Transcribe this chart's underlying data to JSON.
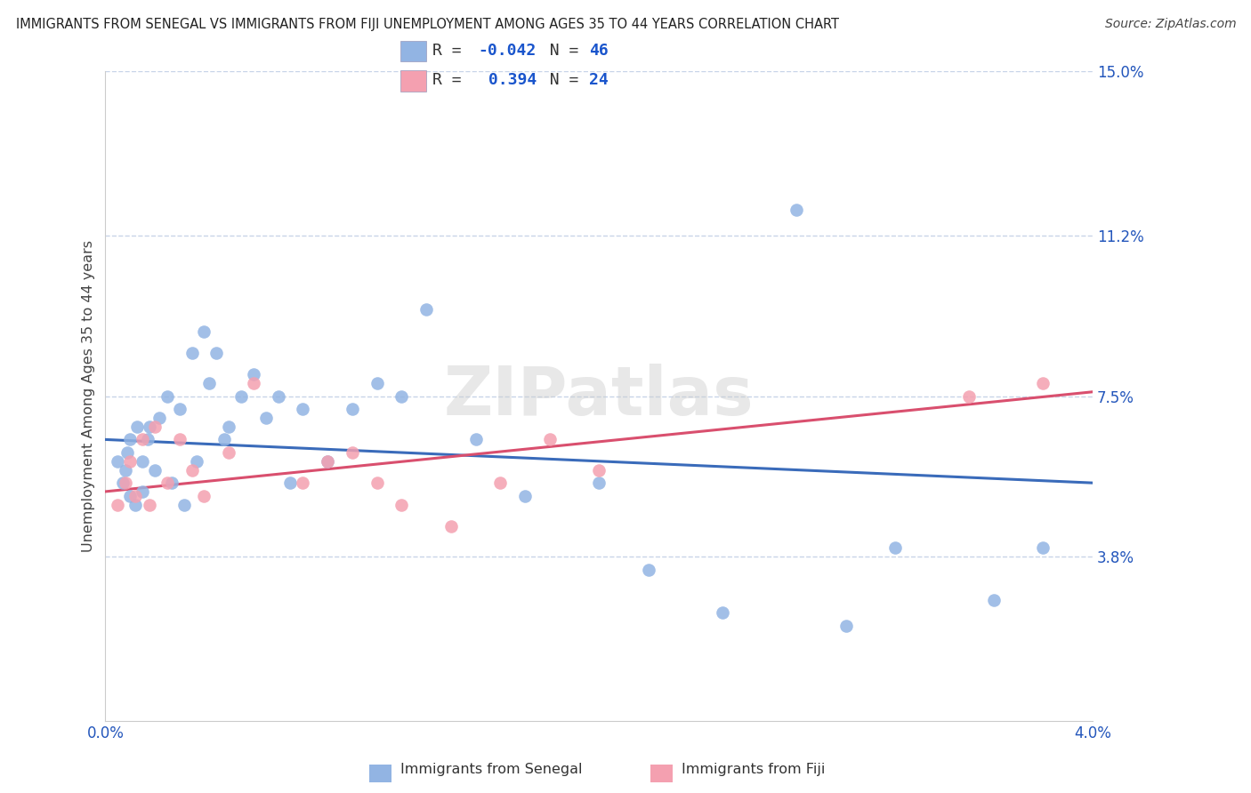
{
  "title": "IMMIGRANTS FROM SENEGAL VS IMMIGRANTS FROM FIJI UNEMPLOYMENT AMONG AGES 35 TO 44 YEARS CORRELATION CHART",
  "source": "Source: ZipAtlas.com",
  "ylabel": "Unemployment Among Ages 35 to 44 years",
  "legend_label_1": "Immigrants from Senegal",
  "legend_label_2": "Immigrants from Fiji",
  "R1": -0.042,
  "N1": 46,
  "R2": 0.394,
  "N2": 24,
  "color1": "#92b4e3",
  "color2": "#f4a0b0",
  "line_color1": "#3a6bba",
  "line_color2": "#d94f6e",
  "xmin": 0.0,
  "xmax": 4.0,
  "ymin": 0.0,
  "ymax": 15.0,
  "yticks": [
    3.8,
    7.5,
    11.2,
    15.0
  ],
  "ytick_labels": [
    "3.8%",
    "7.5%",
    "11.2%",
    "15.0%"
  ],
  "background_color": "#ffffff",
  "grid_color": "#c8d4e8",
  "watermark": "ZIPatlas",
  "R_color": "#1a55cc",
  "title_color": "#222222",
  "tick_color": "#2255bb",
  "senegal_x": [
    0.05,
    0.07,
    0.08,
    0.09,
    0.1,
    0.1,
    0.12,
    0.13,
    0.15,
    0.15,
    0.17,
    0.18,
    0.2,
    0.22,
    0.25,
    0.27,
    0.3,
    0.32,
    0.35,
    0.37,
    0.4,
    0.42,
    0.45,
    0.48,
    0.5,
    0.55,
    0.6,
    0.65,
    0.7,
    0.75,
    0.8,
    0.9,
    1.0,
    1.1,
    1.2,
    1.3,
    1.5,
    1.7,
    2.0,
    2.2,
    2.5,
    2.8,
    3.0,
    3.2,
    3.6,
    3.8
  ],
  "senegal_y": [
    6.0,
    5.5,
    5.8,
    6.2,
    5.2,
    6.5,
    5.0,
    6.8,
    5.3,
    6.0,
    6.5,
    6.8,
    5.8,
    7.0,
    7.5,
    5.5,
    7.2,
    5.0,
    8.5,
    6.0,
    9.0,
    7.8,
    8.5,
    6.5,
    6.8,
    7.5,
    8.0,
    7.0,
    7.5,
    5.5,
    7.2,
    6.0,
    7.2,
    7.8,
    7.5,
    9.5,
    6.5,
    5.2,
    5.5,
    3.5,
    2.5,
    11.8,
    2.2,
    4.0,
    2.8,
    4.0
  ],
  "fiji_x": [
    0.05,
    0.08,
    0.1,
    0.12,
    0.15,
    0.18,
    0.2,
    0.25,
    0.3,
    0.35,
    0.4,
    0.5,
    0.6,
    0.8,
    0.9,
    1.0,
    1.1,
    1.2,
    1.4,
    1.6,
    1.8,
    2.0,
    3.5,
    3.8
  ],
  "fiji_y": [
    5.0,
    5.5,
    6.0,
    5.2,
    6.5,
    5.0,
    6.8,
    5.5,
    6.5,
    5.8,
    5.2,
    6.2,
    7.8,
    5.5,
    6.0,
    6.2,
    5.5,
    5.0,
    4.5,
    5.5,
    6.5,
    5.8,
    7.5,
    7.8
  ],
  "blue_line_x0": 0.0,
  "blue_line_y0": 6.5,
  "blue_line_x1": 4.0,
  "blue_line_y1": 5.5,
  "pink_line_x0": 0.0,
  "pink_line_y0": 5.3,
  "pink_line_x1": 4.0,
  "pink_line_y1": 7.6
}
